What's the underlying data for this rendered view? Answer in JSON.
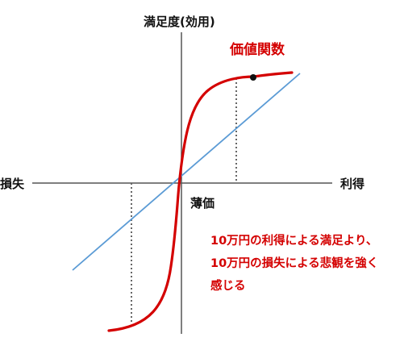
{
  "labels": {
    "y_axis": "満足度(効用)",
    "x_left": "損失",
    "x_right": "利得",
    "origin": "薄価",
    "curve": "価値関数"
  },
  "note": {
    "lines": [
      "10万円の利得による満足より、",
      "10万円の損失による悲観を強く",
      "感じる"
    ]
  },
  "colors": {
    "axis": "#555555",
    "curve": "#d40000",
    "reference_line": "#5b9bd5",
    "dotted_guides": "#666666",
    "text": "#111111",
    "note_text": "#d40000"
  }
}
